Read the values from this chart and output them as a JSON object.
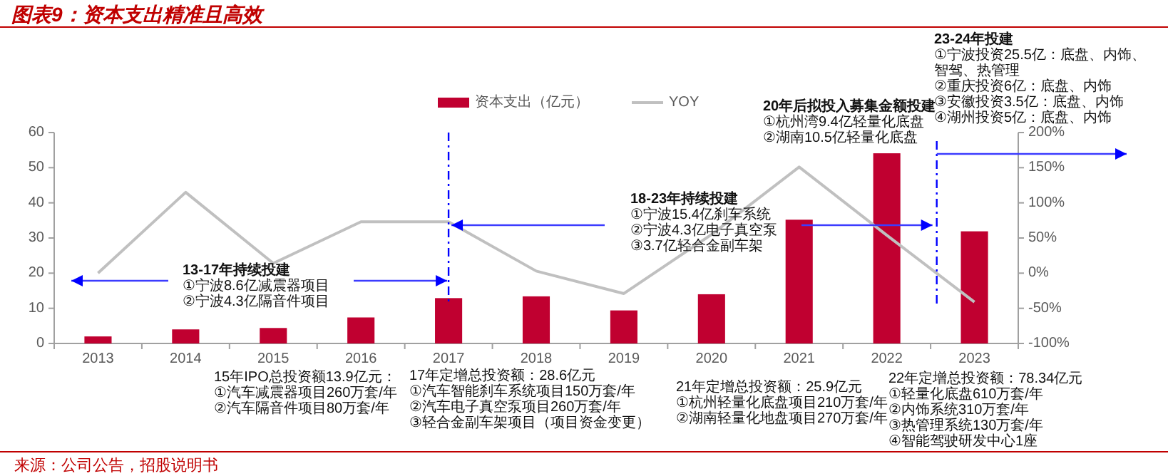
{
  "chart_data": {
    "type": "bar",
    "title": "图表9：资本支出精准且高效",
    "categories": [
      "2013",
      "2014",
      "2015",
      "2016",
      "2017",
      "2018",
      "2019",
      "2020",
      "2021",
      "2022",
      "2023"
    ],
    "series": [
      {
        "name": "资本支出（亿元）",
        "color": "#c00030",
        "values": [
          2.0,
          4.0,
          4.4,
          7.4,
          12.9,
          13.4,
          9.4,
          14.0,
          35.2,
          54.1,
          31.9
        ]
      },
      {
        "name": "YOY",
        "type": "line",
        "axis": "y2",
        "color": "#c0c0c0",
        "values": [
          0,
          115,
          14,
          73,
          73,
          3,
          -29,
          55,
          151,
          54,
          -41
        ]
      }
    ],
    "ylim": [
      0,
      60
    ],
    "yticks": [
      0,
      10,
      20,
      30,
      40,
      50,
      60
    ],
    "y2lim": [
      -100,
      200
    ],
    "y2ticks": [
      {
        "value": -100,
        "label": "-100%"
      },
      {
        "value": -50,
        "label": "-50%"
      },
      {
        "value": 0,
        "label": "0%"
      },
      {
        "value": 50,
        "label": "50%"
      },
      {
        "value": 100,
        "label": "100%"
      },
      {
        "value": 150,
        "label": "150%"
      },
      {
        "value": 200,
        "label": "200%"
      }
    ],
    "legend": "top",
    "ref_lines": [
      {
        "axis": "x",
        "value": "2017",
        "color": "#0000ff",
        "line_style": "dashdot"
      }
    ],
    "annotations": [
      "13-17年持续投建",
      "①宁波8.6亿减震器项目",
      "②宁波4.3亿隔音件项目",
      "18-23年持续投建",
      "①宁波15.4亿刹车系统",
      "②宁波4.3亿电子真空泵",
      "③3.7亿轻合金副车架",
      "20年后拟投入募集金额投建",
      "①杭州湾9.4亿轻量化底盘",
      "②湖南10.5亿轻量化底盘",
      "23-24年投建",
      "①宁波投资25.5亿：底盘、内饰、",
      "智驾、热管理",
      "②重庆投资6亿：底盘、内饰",
      "③安徽投资3.5亿：底盘、内饰",
      "④湖州投资5亿：底盘、内饰",
      "15年IPO总投资额13.9亿元：",
      "①汽车减震器项目260万套/年",
      "②汽车隔音件项目80万套/年",
      "17年定增总投资额：28.6亿元",
      "①汽车智能刹车系统项目150万套/年",
      "②汽车电子真空泵项目260万套/年",
      "③轻合金副车架项目（项目资金变更）",
      "21年定增总投资额：25.9亿元",
      "①杭州轻量化底盘项目210万套/年",
      "②湖南轻量化地盘项目270万套/年",
      "22年定增总投资额：78.34亿元",
      "①轻量化底盘610万套/年",
      "②内饰系统310万套/年",
      "③热管理系统130万套/年",
      "④智能驾驶研发中心1座",
      "来源：公司公告，招股说明书"
    ]
  }
}
